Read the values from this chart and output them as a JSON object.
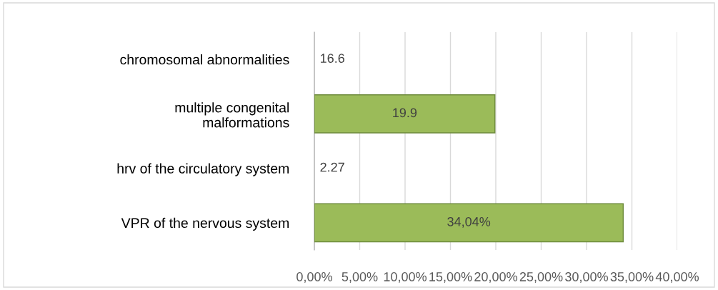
{
  "chart_data": {
    "type": "bar",
    "orientation": "horizontal",
    "categories": [
      "chromosomal abnormalities",
      "multiple congenital\nmalformations",
      "hrv of the circulatory system",
      "VPR of the nervous system"
    ],
    "values": [
      null,
      19.9,
      null,
      34.04
    ],
    "value_labels": [
      "16.6",
      "19.9",
      "2.27",
      "34,04%"
    ],
    "color": "#9bbb59",
    "xlim": [
      0,
      40
    ],
    "xticks": [
      {
        "value": 0,
        "label": "0,00%"
      },
      {
        "value": 5,
        "label": "5,00%"
      },
      {
        "value": 10,
        "label": "10,00%"
      },
      {
        "value": 15,
        "label": "15,00%"
      },
      {
        "value": 20,
        "label": "20,00%"
      },
      {
        "value": 25,
        "label": "25,00%"
      },
      {
        "value": 30,
        "label": "30,00%"
      },
      {
        "value": 35,
        "label": "35,00%"
      },
      {
        "value": 40,
        "label": "40,00%"
      }
    ],
    "grid": "x",
    "legend": false
  }
}
